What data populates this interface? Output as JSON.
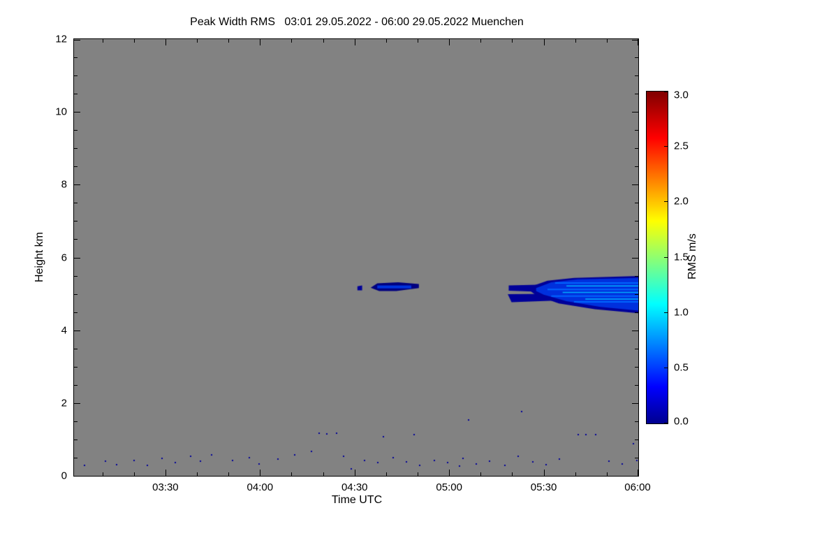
{
  "chart_data": {
    "type": "heatmap",
    "title": "Peak Width RMS   03:01 29.05.2022 - 06:00 29.05.2022 Muenchen",
    "xlabel": "Time UTC",
    "ylabel": "Height km",
    "x_range_hours": [
      3.0167,
      6.0
    ],
    "y_range_km": [
      0,
      12
    ],
    "x_ticks": [
      {
        "t": 3.5,
        "label": "03:30"
      },
      {
        "t": 4.0,
        "label": "04:00"
      },
      {
        "t": 4.5,
        "label": "04:30"
      },
      {
        "t": 5.0,
        "label": "05:00"
      },
      {
        "t": 5.5,
        "label": "05:30"
      },
      {
        "t": 6.0,
        "label": "06:00"
      }
    ],
    "y_ticks": [
      {
        "h": 0,
        "label": "0"
      },
      {
        "h": 2,
        "label": "2"
      },
      {
        "h": 4,
        "label": "4"
      },
      {
        "h": 6,
        "label": "6"
      },
      {
        "h": 8,
        "label": "8"
      },
      {
        "h": 10,
        "label": "10"
      },
      {
        "h": 12,
        "label": "12"
      }
    ],
    "background_color": "#828282",
    "colorbar": {
      "label": "RMS m/s",
      "range": [
        0.0,
        3.0
      ],
      "colormap": "jet",
      "ticks": [
        {
          "value": 3.0,
          "label": "3.0"
        },
        {
          "value": 2.5,
          "label": "2.5"
        },
        {
          "value": 2.0,
          "label": "2.0"
        },
        {
          "value": 1.5,
          "label": "1.5"
        },
        {
          "value": 1.0,
          "label": "1.0"
        },
        {
          "value": 0.5,
          "label": "0.5"
        },
        {
          "value": 0.0,
          "label": "0.0"
        }
      ],
      "stops": [
        {
          "pos": 0.0,
          "color": "#00008F"
        },
        {
          "pos": 0.11,
          "color": "#0000FF"
        },
        {
          "pos": 0.36,
          "color": "#00FFFF"
        },
        {
          "pos": 0.61,
          "color": "#FFFF00"
        },
        {
          "pos": 0.86,
          "color": "#FF0000"
        },
        {
          "pos": 1.0,
          "color": "#800000"
        }
      ]
    },
    "features": [
      {
        "shape": "polygon",
        "color": "#000099",
        "points": [
          [
            4.515,
            5.21
          ],
          [
            4.54,
            5.23
          ],
          [
            4.54,
            5.1
          ],
          [
            4.515,
            5.1
          ]
        ]
      },
      {
        "shape": "polygon",
        "color": "#000080",
        "points": [
          [
            4.585,
            5.17
          ],
          [
            4.62,
            5.29
          ],
          [
            4.73,
            5.32
          ],
          [
            4.84,
            5.27
          ],
          [
            4.84,
            5.16
          ],
          [
            4.72,
            5.08
          ],
          [
            4.63,
            5.08
          ]
        ]
      },
      {
        "shape": "polygon",
        "color": "#0033DD",
        "points": [
          [
            4.62,
            5.23
          ],
          [
            4.8,
            5.23
          ],
          [
            4.8,
            5.15
          ],
          [
            4.62,
            5.15
          ]
        ]
      },
      {
        "shape": "polygon",
        "color": "#000099",
        "points": [
          [
            5.315,
            5.23
          ],
          [
            5.47,
            5.25
          ],
          [
            5.47,
            5.06
          ],
          [
            5.315,
            5.09
          ]
        ]
      },
      {
        "shape": "polygon",
        "color": "#000099",
        "points": [
          [
            5.31,
            4.99
          ],
          [
            5.56,
            5.0
          ],
          [
            5.58,
            4.82
          ],
          [
            5.33,
            4.77
          ]
        ]
      },
      {
        "shape": "polygon",
        "color": "#000099",
        "points": [
          [
            5.43,
            5.2
          ],
          [
            5.52,
            5.36
          ],
          [
            5.66,
            5.44
          ],
          [
            6.0,
            5.49
          ],
          [
            6.0,
            4.47
          ],
          [
            5.77,
            4.58
          ],
          [
            5.58,
            4.74
          ],
          [
            5.46,
            4.96
          ],
          [
            5.43,
            5.08
          ]
        ]
      },
      {
        "shape": "polygon",
        "color": "#0030DD",
        "points": [
          [
            5.46,
            5.16
          ],
          [
            5.54,
            5.32
          ],
          [
            5.68,
            5.4
          ],
          [
            6.0,
            5.44
          ],
          [
            6.0,
            4.54
          ],
          [
            5.8,
            4.64
          ],
          [
            5.62,
            4.8
          ],
          [
            5.5,
            4.98
          ],
          [
            5.46,
            5.08
          ]
        ]
      },
      {
        "shape": "streaks",
        "color": "#0066FF",
        "width": 2,
        "lines": [
          [
            5.56,
            6.0,
            5.3
          ],
          [
            5.52,
            6.0,
            5.12
          ],
          [
            5.54,
            6.0,
            4.94
          ],
          [
            5.66,
            6.0,
            4.78
          ]
        ]
      },
      {
        "shape": "streaks",
        "color": "#00B4FF",
        "width": 1.5,
        "lines": [
          [
            5.62,
            6.0,
            5.22
          ],
          [
            5.6,
            6.0,
            5.04
          ],
          [
            5.72,
            6.0,
            4.86
          ]
        ]
      }
    ],
    "scatter_points": {
      "color": "#000099",
      "size": 2,
      "points": [
        [
          3.07,
          0.3
        ],
        [
          3.18,
          0.42
        ],
        [
          3.24,
          0.33
        ],
        [
          3.33,
          0.45
        ],
        [
          3.4,
          0.3
        ],
        [
          3.48,
          0.5
        ],
        [
          3.55,
          0.38
        ],
        [
          3.63,
          0.55
        ],
        [
          3.68,
          0.42
        ],
        [
          3.74,
          0.6
        ],
        [
          3.85,
          0.45
        ],
        [
          3.94,
          0.52
        ],
        [
          3.99,
          0.35
        ],
        [
          4.09,
          0.48
        ],
        [
          4.18,
          0.6
        ],
        [
          4.27,
          0.7
        ],
        [
          4.31,
          1.2
        ],
        [
          4.35,
          1.18
        ],
        [
          4.4,
          1.2
        ],
        [
          4.44,
          0.55
        ],
        [
          4.48,
          0.22
        ],
        [
          4.55,
          0.45
        ],
        [
          4.62,
          0.38
        ],
        [
          4.65,
          1.1
        ],
        [
          4.7,
          0.52
        ],
        [
          4.77,
          0.4
        ],
        [
          4.81,
          1.15
        ],
        [
          4.84,
          0.3
        ],
        [
          4.92,
          0.45
        ],
        [
          4.99,
          0.38
        ],
        [
          5.05,
          0.28
        ],
        [
          5.07,
          0.5
        ],
        [
          5.1,
          1.55
        ],
        [
          5.14,
          0.35
        ],
        [
          5.21,
          0.42
        ],
        [
          5.29,
          0.3
        ],
        [
          5.36,
          0.55
        ],
        [
          5.38,
          1.78
        ],
        [
          5.44,
          0.4
        ],
        [
          5.51,
          0.33
        ],
        [
          5.58,
          0.48
        ],
        [
          5.68,
          1.15
        ],
        [
          5.72,
          1.15
        ],
        [
          5.77,
          1.15
        ],
        [
          5.84,
          0.42
        ],
        [
          5.91,
          0.35
        ],
        [
          5.97,
          0.9
        ],
        [
          5.99,
          0.45
        ]
      ]
    }
  }
}
